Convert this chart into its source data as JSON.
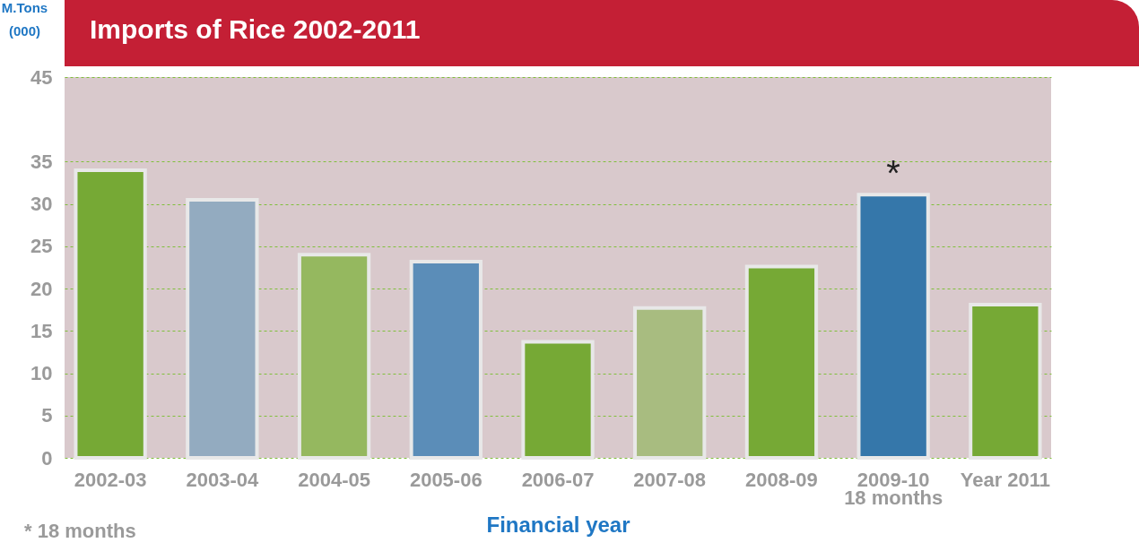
{
  "chart_data": {
    "type": "bar",
    "title": "Imports of Rice 2002-2011",
    "xlabel": "Financial year",
    "ylabel": "M.Tons\n(000)",
    "categories": [
      "2002-03",
      "2003-04",
      "2004-05",
      "2005-06",
      "2006-07",
      "2007-08",
      "2008-09",
      "2009-10\n18 months",
      "Year 2011"
    ],
    "values": [
      34,
      30.5,
      24,
      23.2,
      13.7,
      17.7,
      22.6,
      31.1,
      18.1
    ],
    "colors": [
      "#76a935",
      "#93abc0",
      "#95b85f",
      "#5b8db8",
      "#76a935",
      "#a8bc80",
      "#76a935",
      "#3577aa",
      "#76a935"
    ],
    "ylim": [
      0,
      45
    ],
    "yticks": [
      0,
      5,
      10,
      15,
      20,
      25,
      30,
      35,
      45
    ],
    "grid": "y",
    "annotations": [
      {
        "text": "*",
        "x": "2009-10\n18 months",
        "y": 31.1
      },
      "* 18 months"
    ]
  }
}
